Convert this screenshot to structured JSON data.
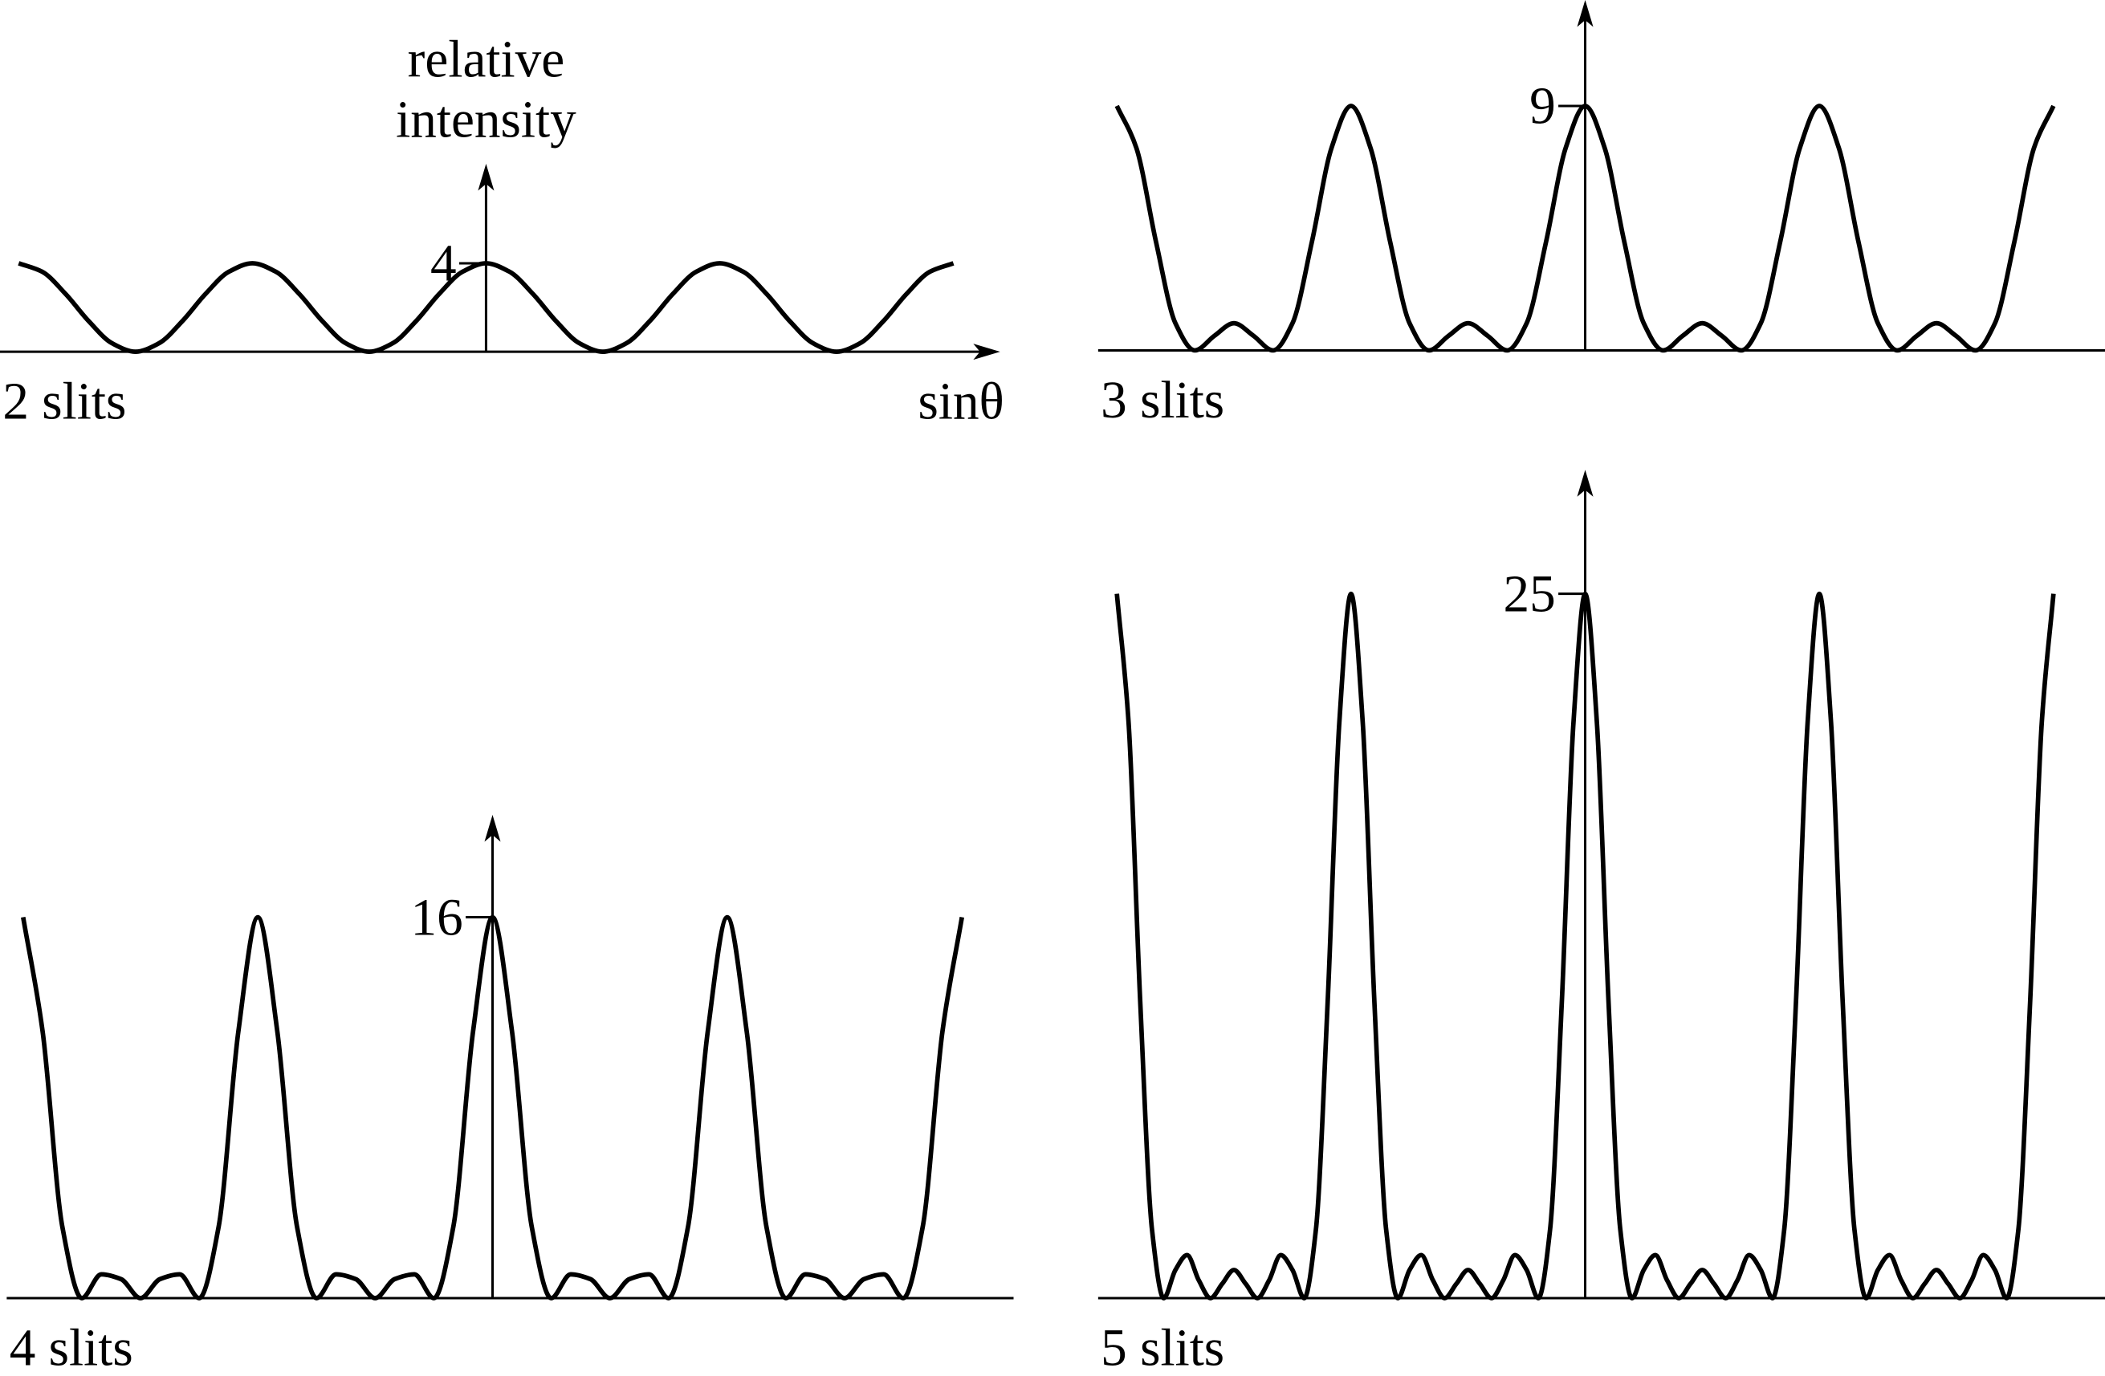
{
  "chart_data": [
    {
      "type": "line",
      "label": "2 slits",
      "ylabel": [
        "relative",
        "intensity"
      ],
      "xlabel": "sinθ",
      "color": "#000000",
      "xlim": [
        -2.08,
        2.2
      ],
      "ylim": [
        0,
        8.5
      ],
      "yticks": [
        4
      ],
      "x": [
        -2,
        -1.9,
        -1.8,
        -1.7,
        -1.6,
        -1.5,
        -1.4,
        -1.3,
        -1.2,
        -1.1,
        -1,
        -0.9,
        -0.8,
        -0.7,
        -0.6,
        -0.5,
        -0.4,
        -0.3,
        -0.2,
        -0.1,
        0,
        0.1,
        0.2,
        0.3,
        0.4,
        0.5,
        0.6,
        0.7,
        0.8,
        0.9,
        1,
        1.1,
        1.2,
        1.3,
        1.4,
        1.5,
        1.6,
        1.7,
        1.8,
        1.9,
        2
      ],
      "values": [
        4,
        3.62,
        2.62,
        1.38,
        0.38,
        0,
        0.38,
        1.38,
        2.62,
        3.62,
        4,
        3.62,
        2.62,
        1.38,
        0.38,
        0,
        0.38,
        1.38,
        2.62,
        3.62,
        4,
        3.62,
        2.62,
        1.38,
        0.38,
        0,
        0.38,
        1.38,
        2.62,
        3.62,
        4,
        3.62,
        2.62,
        1.38,
        0.38,
        0,
        0.38,
        1.38,
        2.62,
        3.62,
        4
      ]
    },
    {
      "type": "line",
      "label": "3 slits",
      "color": "#000000",
      "xlim": [
        -2.08,
        2.22
      ],
      "ylim": [
        0,
        12.9
      ],
      "yticks": [
        9
      ],
      "x": [
        -2,
        -1.917,
        -1.833,
        -1.75,
        -1.667,
        -1.583,
        -1.5,
        -1.417,
        -1.333,
        -1.25,
        -1.167,
        -1.083,
        -1,
        -0.917,
        -0.833,
        -0.75,
        -0.667,
        -0.583,
        -0.5,
        -0.417,
        -0.333,
        -0.25,
        -0.167,
        -0.083,
        0,
        0.083,
        0.167,
        0.25,
        0.333,
        0.417,
        0.5,
        0.583,
        0.667,
        0.75,
        0.833,
        0.917,
        1,
        1.083,
        1.167,
        1.25,
        1.333,
        1.417,
        1.5,
        1.583,
        1.667,
        1.75,
        1.833,
        1.917,
        2
      ],
      "values": [
        9,
        7.46,
        4,
        1,
        0,
        0.54,
        1,
        0.54,
        0,
        1,
        4,
        7.46,
        9,
        7.46,
        4,
        1,
        0,
        0.54,
        1,
        0.54,
        0,
        1,
        4,
        7.46,
        9,
        7.46,
        4,
        1,
        0,
        0.54,
        1,
        0.54,
        0,
        1,
        4,
        7.46,
        9,
        7.46,
        4,
        1,
        0,
        0.54,
        1,
        0.54,
        0,
        1,
        4,
        7.46,
        9
      ]
    },
    {
      "type": "line",
      "label": "4 slits",
      "color": "#000000",
      "xlim": [
        -2.07,
        2.22
      ],
      "ylim": [
        0,
        20.3
      ],
      "yticks": [
        16
      ],
      "x": [
        -2,
        -1.917,
        -1.833,
        -1.75,
        -1.667,
        -1.583,
        -1.5,
        -1.417,
        -1.333,
        -1.25,
        -1.167,
        -1.083,
        -1,
        -0.917,
        -0.833,
        -0.75,
        -0.667,
        -0.583,
        -0.5,
        -0.417,
        -0.333,
        -0.25,
        -0.167,
        -0.083,
        0,
        0.083,
        0.167,
        0.25,
        0.333,
        0.417,
        0.5,
        0.583,
        0.667,
        0.75,
        0.833,
        0.917,
        1,
        1.083,
        1.167,
        1.25,
        1.333,
        1.417,
        1.5,
        1.583,
        1.667,
        1.75,
        1.833,
        1.917,
        2
      ],
      "values": [
        16,
        11.2,
        3,
        0,
        1,
        0.8,
        0,
        0.8,
        1,
        0,
        3,
        11.2,
        16,
        11.2,
        3,
        0,
        1,
        0.8,
        0,
        0.8,
        1,
        0,
        3,
        11.2,
        16,
        11.2,
        3,
        0,
        1,
        0.8,
        0,
        0.8,
        1,
        0,
        3,
        11.2,
        16,
        11.2,
        3,
        0,
        1,
        0.8,
        0,
        0.8,
        1,
        0,
        3,
        11.2,
        16
      ]
    },
    {
      "type": "line",
      "label": "5 slits",
      "color": "#000000",
      "xlim": [
        -2.08,
        2.22
      ],
      "ylim": [
        0,
        29.4
      ],
      "yticks": [
        25
      ],
      "x": [
        -2,
        -1.95,
        -1.9,
        -1.85,
        -1.8,
        -1.75,
        -1.7,
        -1.65,
        -1.6,
        -1.55,
        -1.5,
        -1.45,
        -1.4,
        -1.35,
        -1.3,
        -1.25,
        -1.2,
        -1.15,
        -1.1,
        -1.05,
        -1,
        -0.95,
        -0.9,
        -0.85,
        -0.8,
        -0.75,
        -0.7,
        -0.65,
        -0.6,
        -0.55,
        -0.5,
        -0.45,
        -0.4,
        -0.35,
        -0.3,
        -0.25,
        -0.2,
        -0.15,
        -0.1,
        -0.05,
        0,
        0.05,
        0.1,
        0.15,
        0.2,
        0.25,
        0.3,
        0.35,
        0.4,
        0.45,
        0.5,
        0.55,
        0.6,
        0.65,
        0.7,
        0.75,
        0.8,
        0.85,
        0.9,
        0.95,
        1,
        1.05,
        1.1,
        1.15,
        1.2,
        1.25,
        1.3,
        1.35,
        1.4,
        1.45,
        1.5,
        1.55,
        1.6,
        1.65,
        1.7,
        1.75,
        1.8,
        1.85,
        1.9,
        1.95,
        2
      ],
      "values": [
        25,
        20.43,
        10.47,
        2.43,
        0,
        1,
        1.53,
        0.63,
        0,
        0.51,
        1,
        0.51,
        0,
        0.63,
        1.53,
        1,
        0,
        2.43,
        10.47,
        20.43,
        25,
        20.43,
        10.47,
        2.43,
        0,
        1,
        1.53,
        0.63,
        0,
        0.51,
        1,
        0.51,
        0,
        0.63,
        1.53,
        1,
        0,
        2.43,
        10.47,
        20.43,
        25,
        20.43,
        10.47,
        2.43,
        0,
        1,
        1.53,
        0.63,
        0,
        0.51,
        1,
        0.51,
        0,
        0.63,
        1.53,
        1,
        0,
        2.43,
        10.47,
        20.43,
        25,
        20.43,
        10.47,
        2.43,
        0,
        1,
        1.53,
        0.63,
        0,
        0.51,
        1,
        0.51,
        0,
        0.63,
        1.53,
        1,
        0,
        2.43,
        10.47,
        20.43,
        25
      ]
    }
  ]
}
